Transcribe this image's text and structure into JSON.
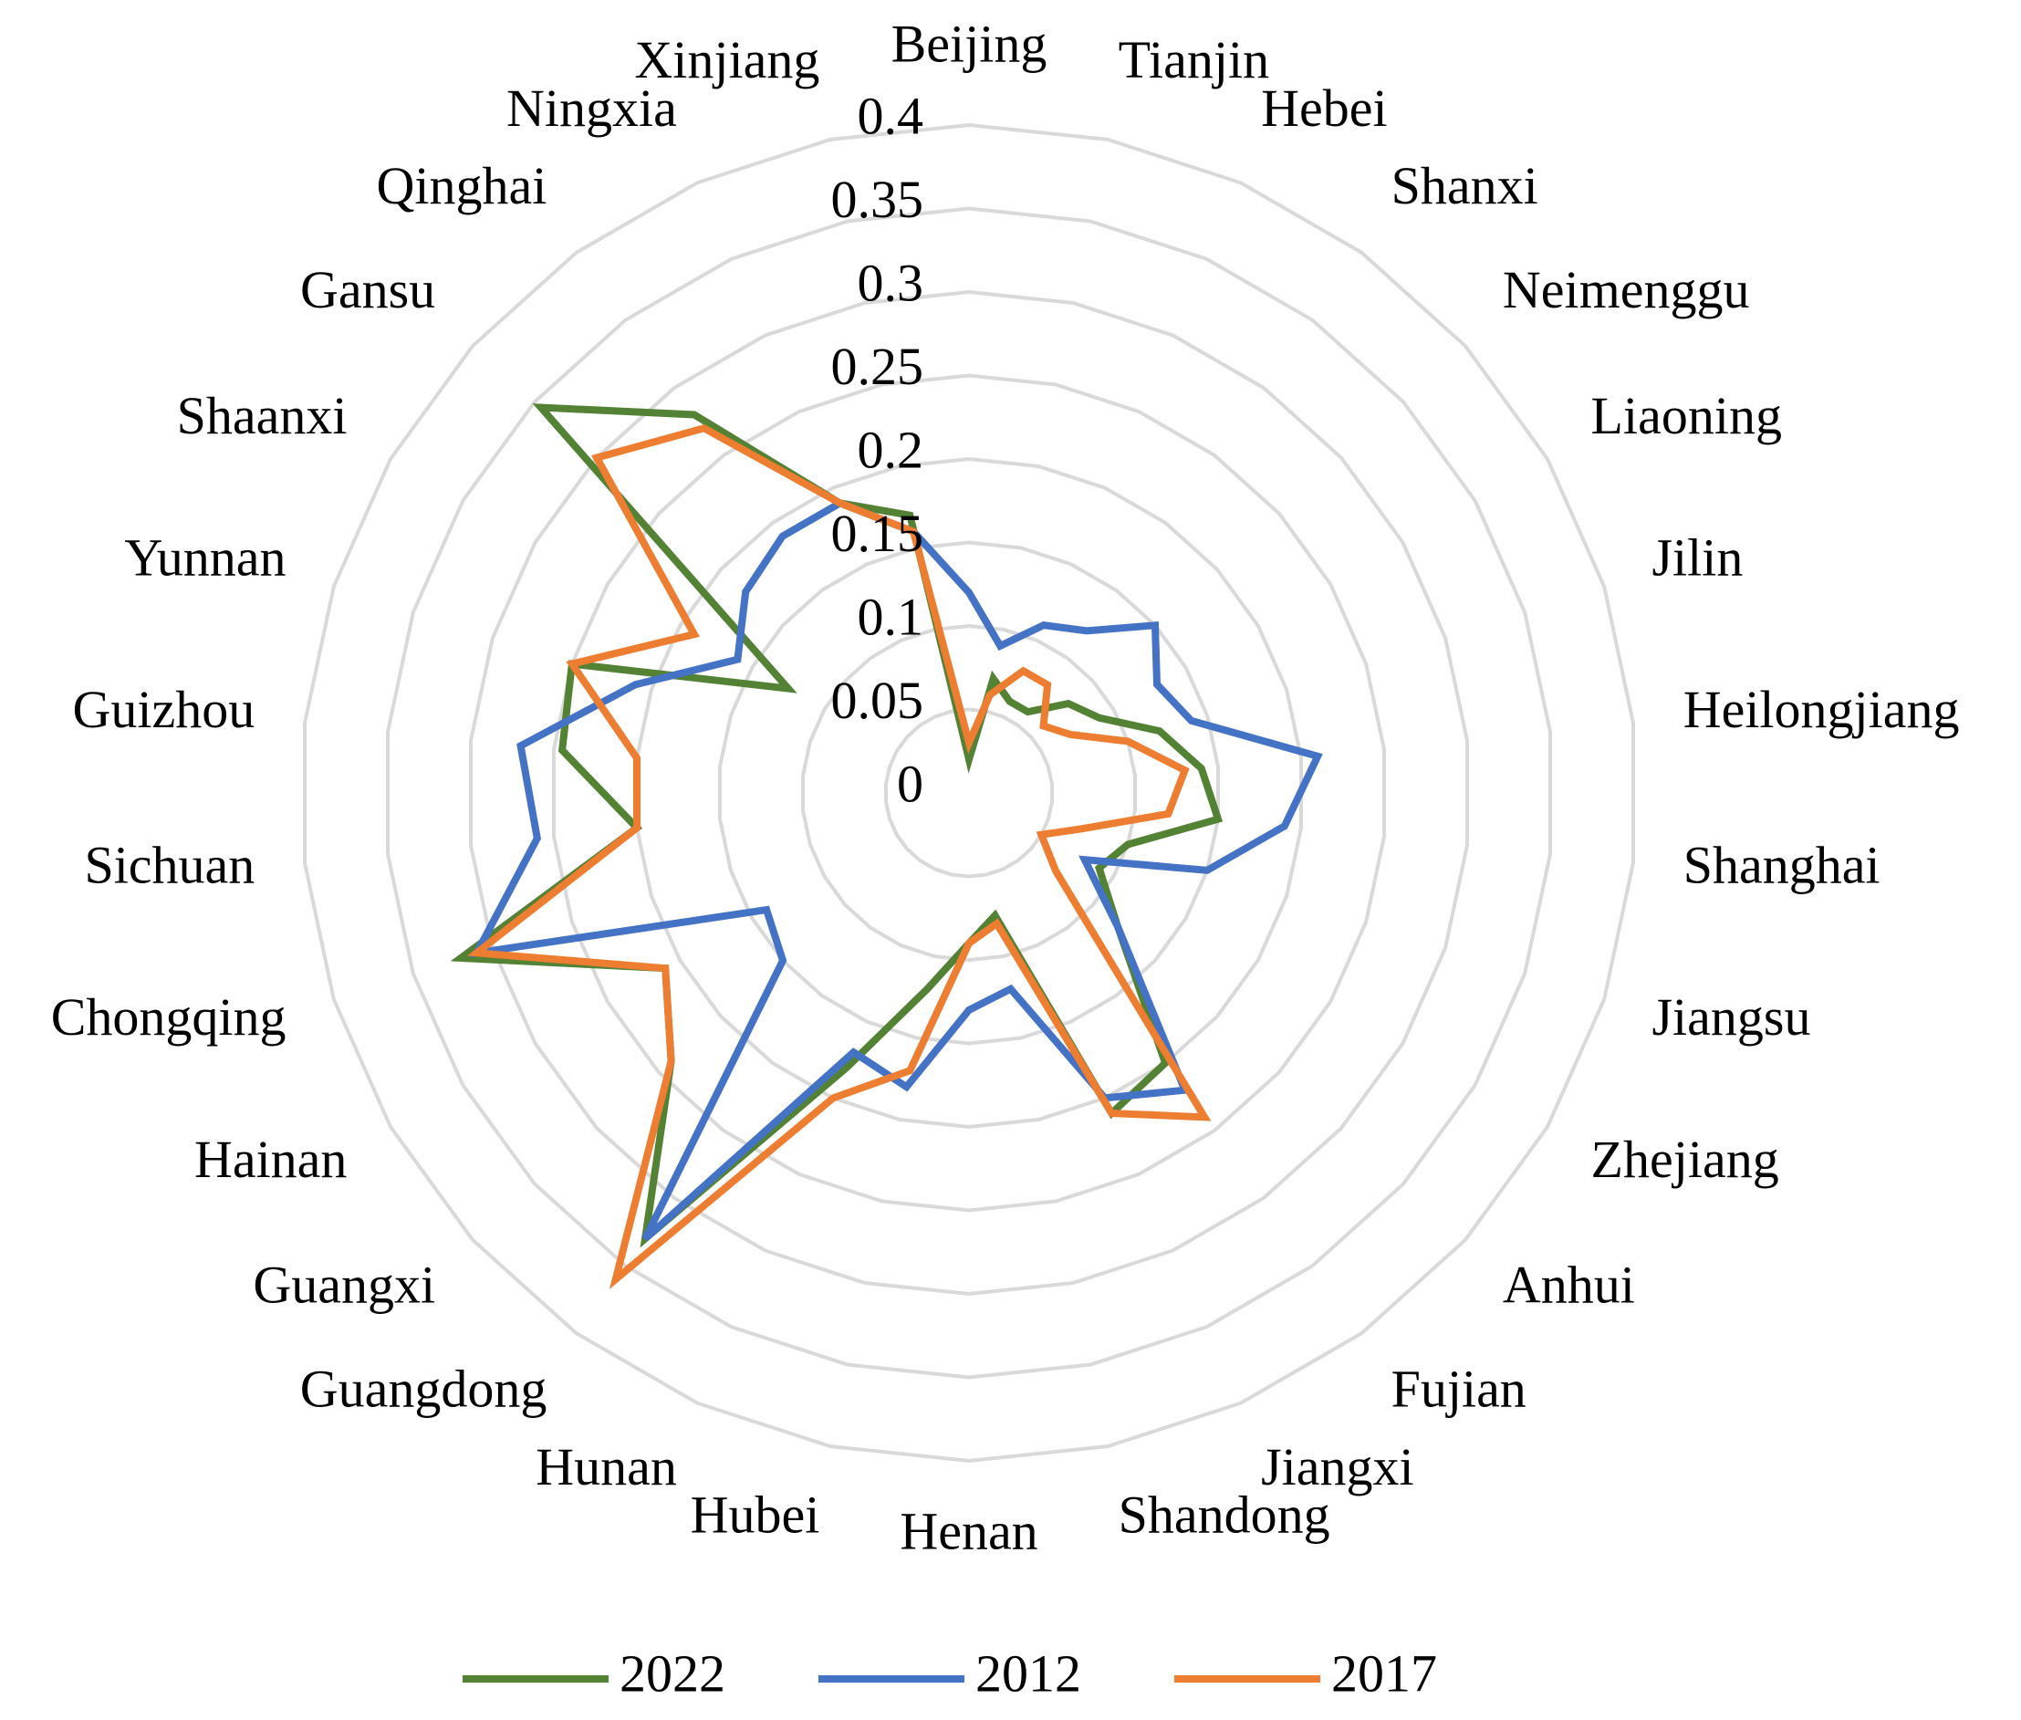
{
  "chart_data": {
    "type": "radar",
    "categories": [
      "Beijing",
      "Tianjin",
      "Hebei",
      "Shanxi",
      "Neimenggu",
      "Liaoning",
      "Jilin",
      "Heilongjiang",
      "Shanghai",
      "Jiangsu",
      "Zhejiang",
      "Anhui",
      "Fujian",
      "Jiangxi",
      "Shandong",
      "Henan",
      "Hubei",
      "Hunan",
      "Guangdong",
      "Guangxi",
      "Hainan",
      "Chongqing",
      "Sichuan",
      "Guizhou",
      "Yunnan",
      "Shaanxi",
      "Gansu",
      "Qinghai",
      "Ningxia",
      "Xinjiang"
    ],
    "series": [
      {
        "name": "2022",
        "color": "#548235",
        "values": [
          0.02,
          0.07,
          0.06,
          0.06,
          0.08,
          0.09,
          0.12,
          0.14,
          0.15,
          0.1,
          0.09,
          0.12,
          0.2,
          0.21,
          0.075,
          0.09,
          0.12,
          0.18,
          0.33,
          0.24,
          0.21,
          0.32,
          0.2,
          0.245,
          0.25,
          0.125,
          0.345,
          0.28,
          0.19,
          0.17
        ]
      },
      {
        "name": "2012",
        "color": "#4472c4",
        "values": [
          0.12,
          0.09,
          0.11,
          0.12,
          0.15,
          0.13,
          0.14,
          0.21,
          0.19,
          0.15,
          0.08,
          0.12,
          0.22,
          0.2,
          0.12,
          0.13,
          0.18,
          0.17,
          0.33,
          0.15,
          0.14,
          0.31,
          0.26,
          0.27,
          0.21,
          0.16,
          0.18,
          0.19,
          0.19,
          0.16
        ]
      },
      {
        "name": "2017",
        "color": "#ed7d31",
        "values": [
          0.03,
          0.06,
          0.08,
          0.08,
          0.06,
          0.07,
          0.1,
          0.13,
          0.12,
          0.07,
          0.05,
          0.07,
          0.24,
          0.21,
          0.08,
          0.09,
          0.17,
          0.2,
          0.36,
          0.24,
          0.21,
          0.31,
          0.2,
          0.2,
          0.25,
          0.19,
          0.3,
          0.27,
          0.19,
          0.16
        ]
      }
    ],
    "rlim": [
      0,
      0.4
    ],
    "rticks": [
      0,
      0.05,
      0.1,
      0.15,
      0.2,
      0.25,
      0.3,
      0.35,
      0.4
    ],
    "grid": true,
    "legend": "bottom"
  }
}
